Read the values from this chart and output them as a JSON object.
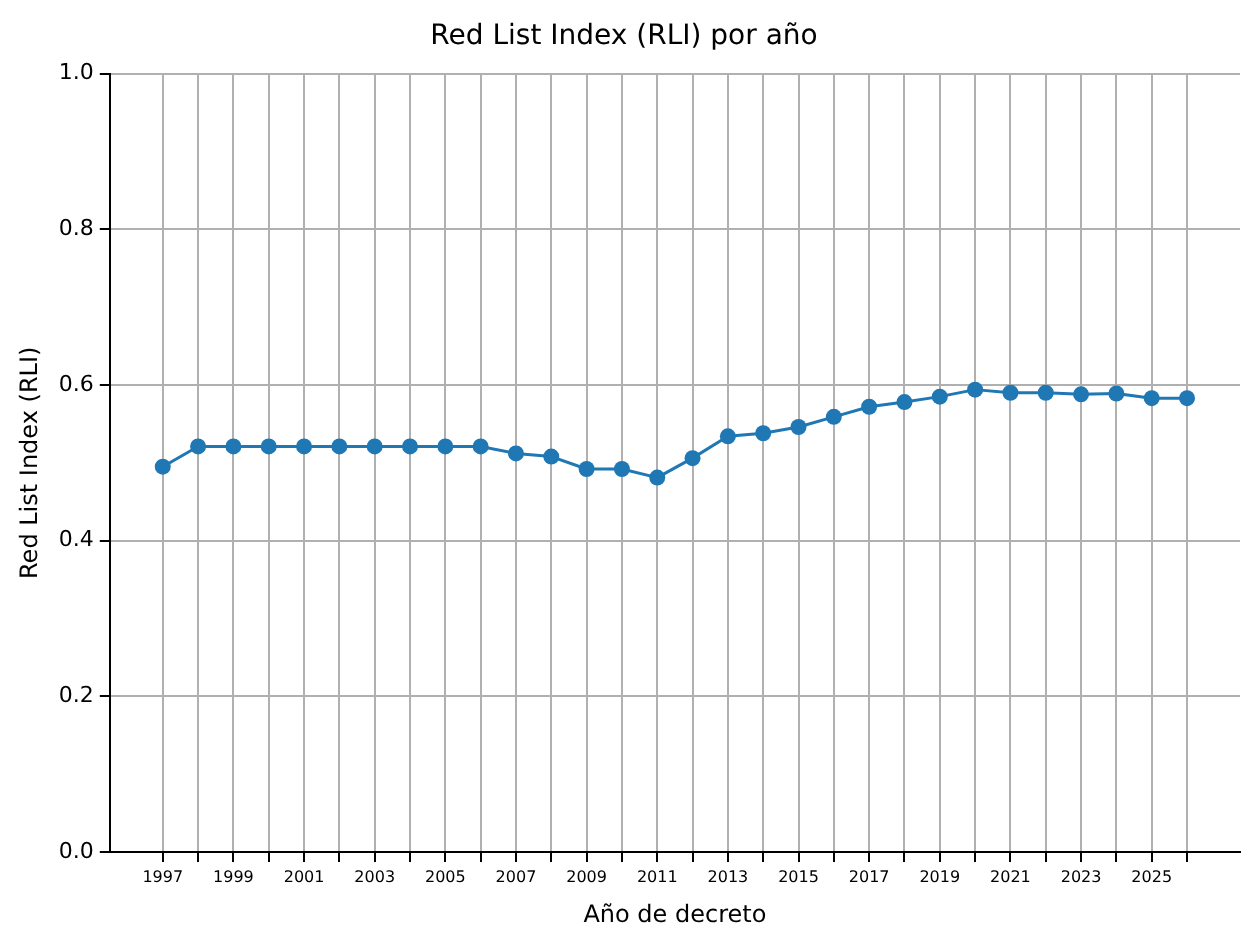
{
  "chart_data": {
    "type": "line",
    "title": "Red List Index (RLI) por año",
    "xlabel": "Año de decreto",
    "ylabel": "Red List Index (RLI)",
    "x": [
      1997,
      1998,
      1999,
      2000,
      2001,
      2002,
      2003,
      2004,
      2005,
      2006,
      2007,
      2008,
      2009,
      2010,
      2011,
      2012,
      2013,
      2014,
      2015,
      2016,
      2017,
      2018,
      2019,
      2020,
      2021,
      2022,
      2023,
      2024,
      2025,
      2026
    ],
    "series": [
      {
        "color": "#1f77b4",
        "values": [
          0.495,
          0.521,
          0.521,
          0.521,
          0.521,
          0.521,
          0.521,
          0.521,
          0.521,
          0.521,
          0.512,
          0.508,
          0.492,
          0.492,
          0.481,
          0.506,
          0.534,
          0.538,
          0.546,
          0.559,
          0.572,
          0.578,
          0.585,
          0.594,
          0.59,
          0.59,
          0.588,
          0.589,
          0.583,
          0.583
        ]
      }
    ],
    "xlim": [
      1995.5,
      2027.5
    ],
    "xticks": [
      1997,
      {
        "value": 1998,
        "label": null
      },
      1999,
      {
        "value": 2000,
        "label": null
      },
      2001,
      {
        "value": 2002,
        "label": null
      },
      2003,
      {
        "value": 2004,
        "label": null
      },
      2005,
      {
        "value": 2006,
        "label": null
      },
      2007,
      {
        "value": 2008,
        "label": null
      },
      2009,
      {
        "value": 2010,
        "label": null
      },
      2011,
      {
        "value": 2012,
        "label": null
      },
      2013,
      {
        "value": 2014,
        "label": null
      },
      2015,
      {
        "value": 2016,
        "label": null
      },
      2017,
      {
        "value": 2018,
        "label": null
      },
      2019,
      {
        "value": 2020,
        "label": null
      },
      2021,
      {
        "value": 2022,
        "label": null
      },
      2023,
      {
        "value": 2024,
        "label": null
      },
      2025,
      {
        "value": 2026,
        "label": null
      }
    ],
    "ylim": [
      0,
      1
    ],
    "yticks": [
      {
        "value": 0,
        "label": "0.0"
      },
      0.2,
      0.4,
      0.6,
      0.8,
      {
        "value": 1,
        "label": "1.0"
      }
    ],
    "grid": true,
    "marker": "circle",
    "line_style": "solid",
    "legend": false
  }
}
